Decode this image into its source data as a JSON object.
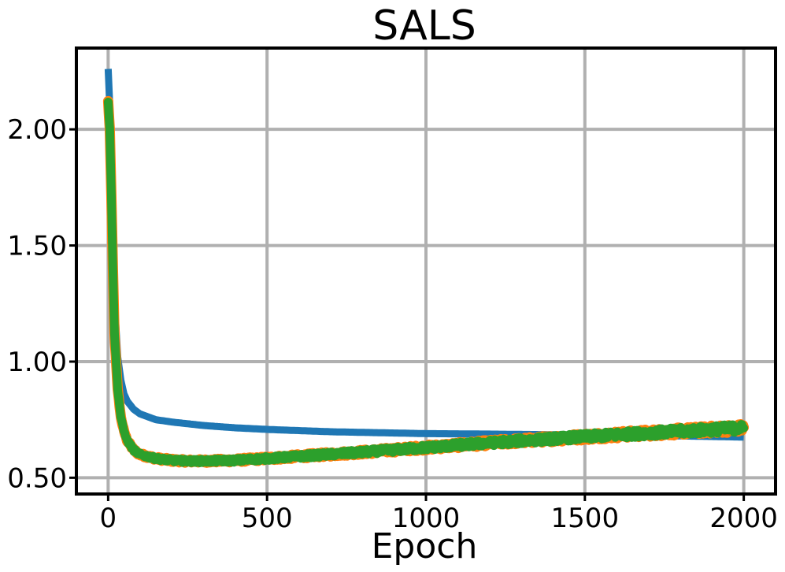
{
  "chart_data": {
    "type": "line",
    "title": "SALS",
    "xlabel": "Epoch",
    "ylabel": "",
    "xlim": [
      -100,
      2100
    ],
    "ylim": [
      0.43,
      2.35
    ],
    "xticks": [
      0,
      500,
      1000,
      1500,
      2000
    ],
    "xtick_labels": [
      "0",
      "500",
      "1000",
      "1500",
      "2000"
    ],
    "yticks": [
      0.5,
      1.0,
      1.5,
      2.0
    ],
    "ytick_labels": [
      "0.50",
      "1.00",
      "1.50",
      "2.00"
    ],
    "grid": true,
    "series": [
      {
        "color": "#1f77b4",
        "style": "smooth",
        "x": [
          0,
          5,
          10,
          15,
          20,
          30,
          40,
          50,
          60,
          80,
          100,
          150,
          200,
          300,
          400,
          500,
          700,
          1000,
          1200,
          1500,
          1800,
          2000
        ],
        "y": [
          2.26,
          2.1,
          1.82,
          1.5,
          1.25,
          1.02,
          0.92,
          0.86,
          0.83,
          0.795,
          0.775,
          0.75,
          0.74,
          0.725,
          0.715,
          0.708,
          0.698,
          0.69,
          0.688,
          0.684,
          0.68,
          0.675
        ]
      },
      {
        "color": "#ff7f0e",
        "style": "noisy",
        "x": [
          0,
          5,
          10,
          15,
          20,
          30,
          40,
          50,
          60,
          80,
          100,
          150,
          200,
          250,
          300,
          400,
          500,
          600,
          800,
          1000,
          1200,
          1400,
          1600,
          1800,
          2000
        ],
        "y": [
          2.12,
          2.0,
          1.72,
          1.4,
          1.12,
          0.88,
          0.76,
          0.7,
          0.66,
          0.62,
          0.6,
          0.583,
          0.575,
          0.572,
          0.572,
          0.575,
          0.583,
          0.592,
          0.61,
          0.63,
          0.65,
          0.668,
          0.685,
          0.7,
          0.715
        ]
      },
      {
        "color": "#2ca02c",
        "style": "noisy",
        "x": [
          0,
          5,
          10,
          15,
          20,
          30,
          40,
          50,
          60,
          80,
          100,
          150,
          200,
          250,
          300,
          400,
          500,
          600,
          800,
          1000,
          1200,
          1400,
          1600,
          1800,
          2000
        ],
        "y": [
          2.12,
          2.0,
          1.72,
          1.4,
          1.12,
          0.88,
          0.76,
          0.7,
          0.66,
          0.62,
          0.6,
          0.583,
          0.575,
          0.572,
          0.572,
          0.575,
          0.583,
          0.592,
          0.61,
          0.63,
          0.65,
          0.668,
          0.685,
          0.7,
          0.715
        ]
      }
    ]
  }
}
